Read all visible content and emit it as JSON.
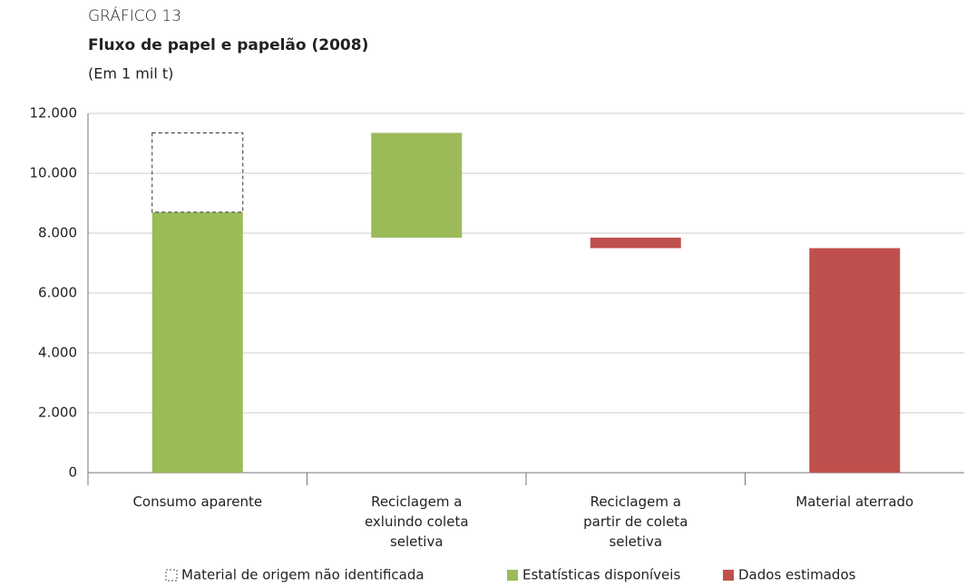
{
  "chart_data": {
    "type": "waterfall",
    "label": "GRÁFICO 13",
    "title": "Fluxo de papel e papelão (2008)",
    "subtitle": "(Em 1 mil t)",
    "categories": [
      "Consumo aparente",
      "Reciclagem a exluindo coleta seletiva",
      "Reciclagem a partir de coleta seletiva",
      "Material aterrado"
    ],
    "measure": [
      "relative",
      "relative",
      "relative",
      "total"
    ],
    "series": [
      {
        "name": "Material de origem não identificada",
        "color": "none",
        "values": [
          2650,
          null,
          null,
          null
        ]
      },
      {
        "name": "Estatísticas disponíveis",
        "color": "#9bbb59",
        "values": [
          8700,
          -3500,
          null,
          null
        ]
      },
      {
        "name": "Dados estimados",
        "color": "#c0504d",
        "values": [
          null,
          null,
          -350,
          7500
        ]
      }
    ],
    "ylim": [
      0,
      12000
    ],
    "yticks": [
      0,
      {
        "value": 2000,
        "label": "2.000"
      },
      {
        "value": 4000,
        "label": "4.000"
      },
      {
        "value": 6000,
        "label": "6.000"
      },
      {
        "value": 8000,
        "label": "8.000"
      },
      {
        "value": 10000,
        "label": "10.000"
      },
      {
        "value": 12000,
        "label": "12.000"
      }
    ],
    "grid": true
  }
}
